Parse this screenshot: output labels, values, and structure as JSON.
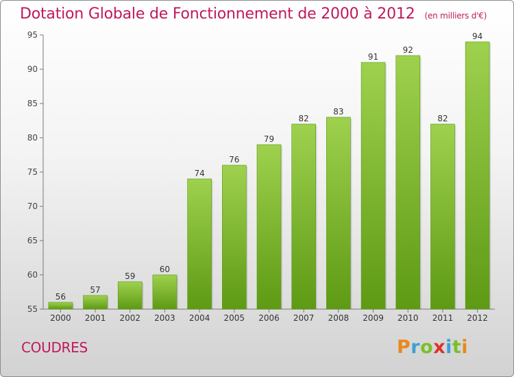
{
  "title": "Dotation Globale de Fonctionnement de 2000 à 2012",
  "unit": "(en milliers d'€)",
  "town": "COUDRES",
  "brand": {
    "letters": [
      "P",
      "r",
      "o",
      "x",
      "i",
      "t",
      "i"
    ],
    "colors": [
      "#e8891d",
      "#3c9fd6",
      "#7cbf2a",
      "#e0312b",
      "#3c9fd6",
      "#7cbf2a",
      "#e8891d"
    ]
  },
  "colors": {
    "title": "#c0185c",
    "bar_top": "#9ed14e",
    "bar_bottom": "#5e9a14"
  },
  "chart_data": {
    "type": "bar",
    "categories": [
      "2000",
      "2001",
      "2002",
      "2003",
      "2004",
      "2005",
      "2006",
      "2007",
      "2008",
      "2009",
      "2010",
      "2011",
      "2012"
    ],
    "values": [
      56,
      57,
      59,
      60,
      74,
      76,
      79,
      82,
      83,
      91,
      92,
      82,
      94
    ],
    "ylim": [
      55,
      95
    ],
    "yticks": [
      55,
      60,
      65,
      70,
      75,
      80,
      85,
      90,
      95
    ],
    "grid": false,
    "data_labels": true
  }
}
